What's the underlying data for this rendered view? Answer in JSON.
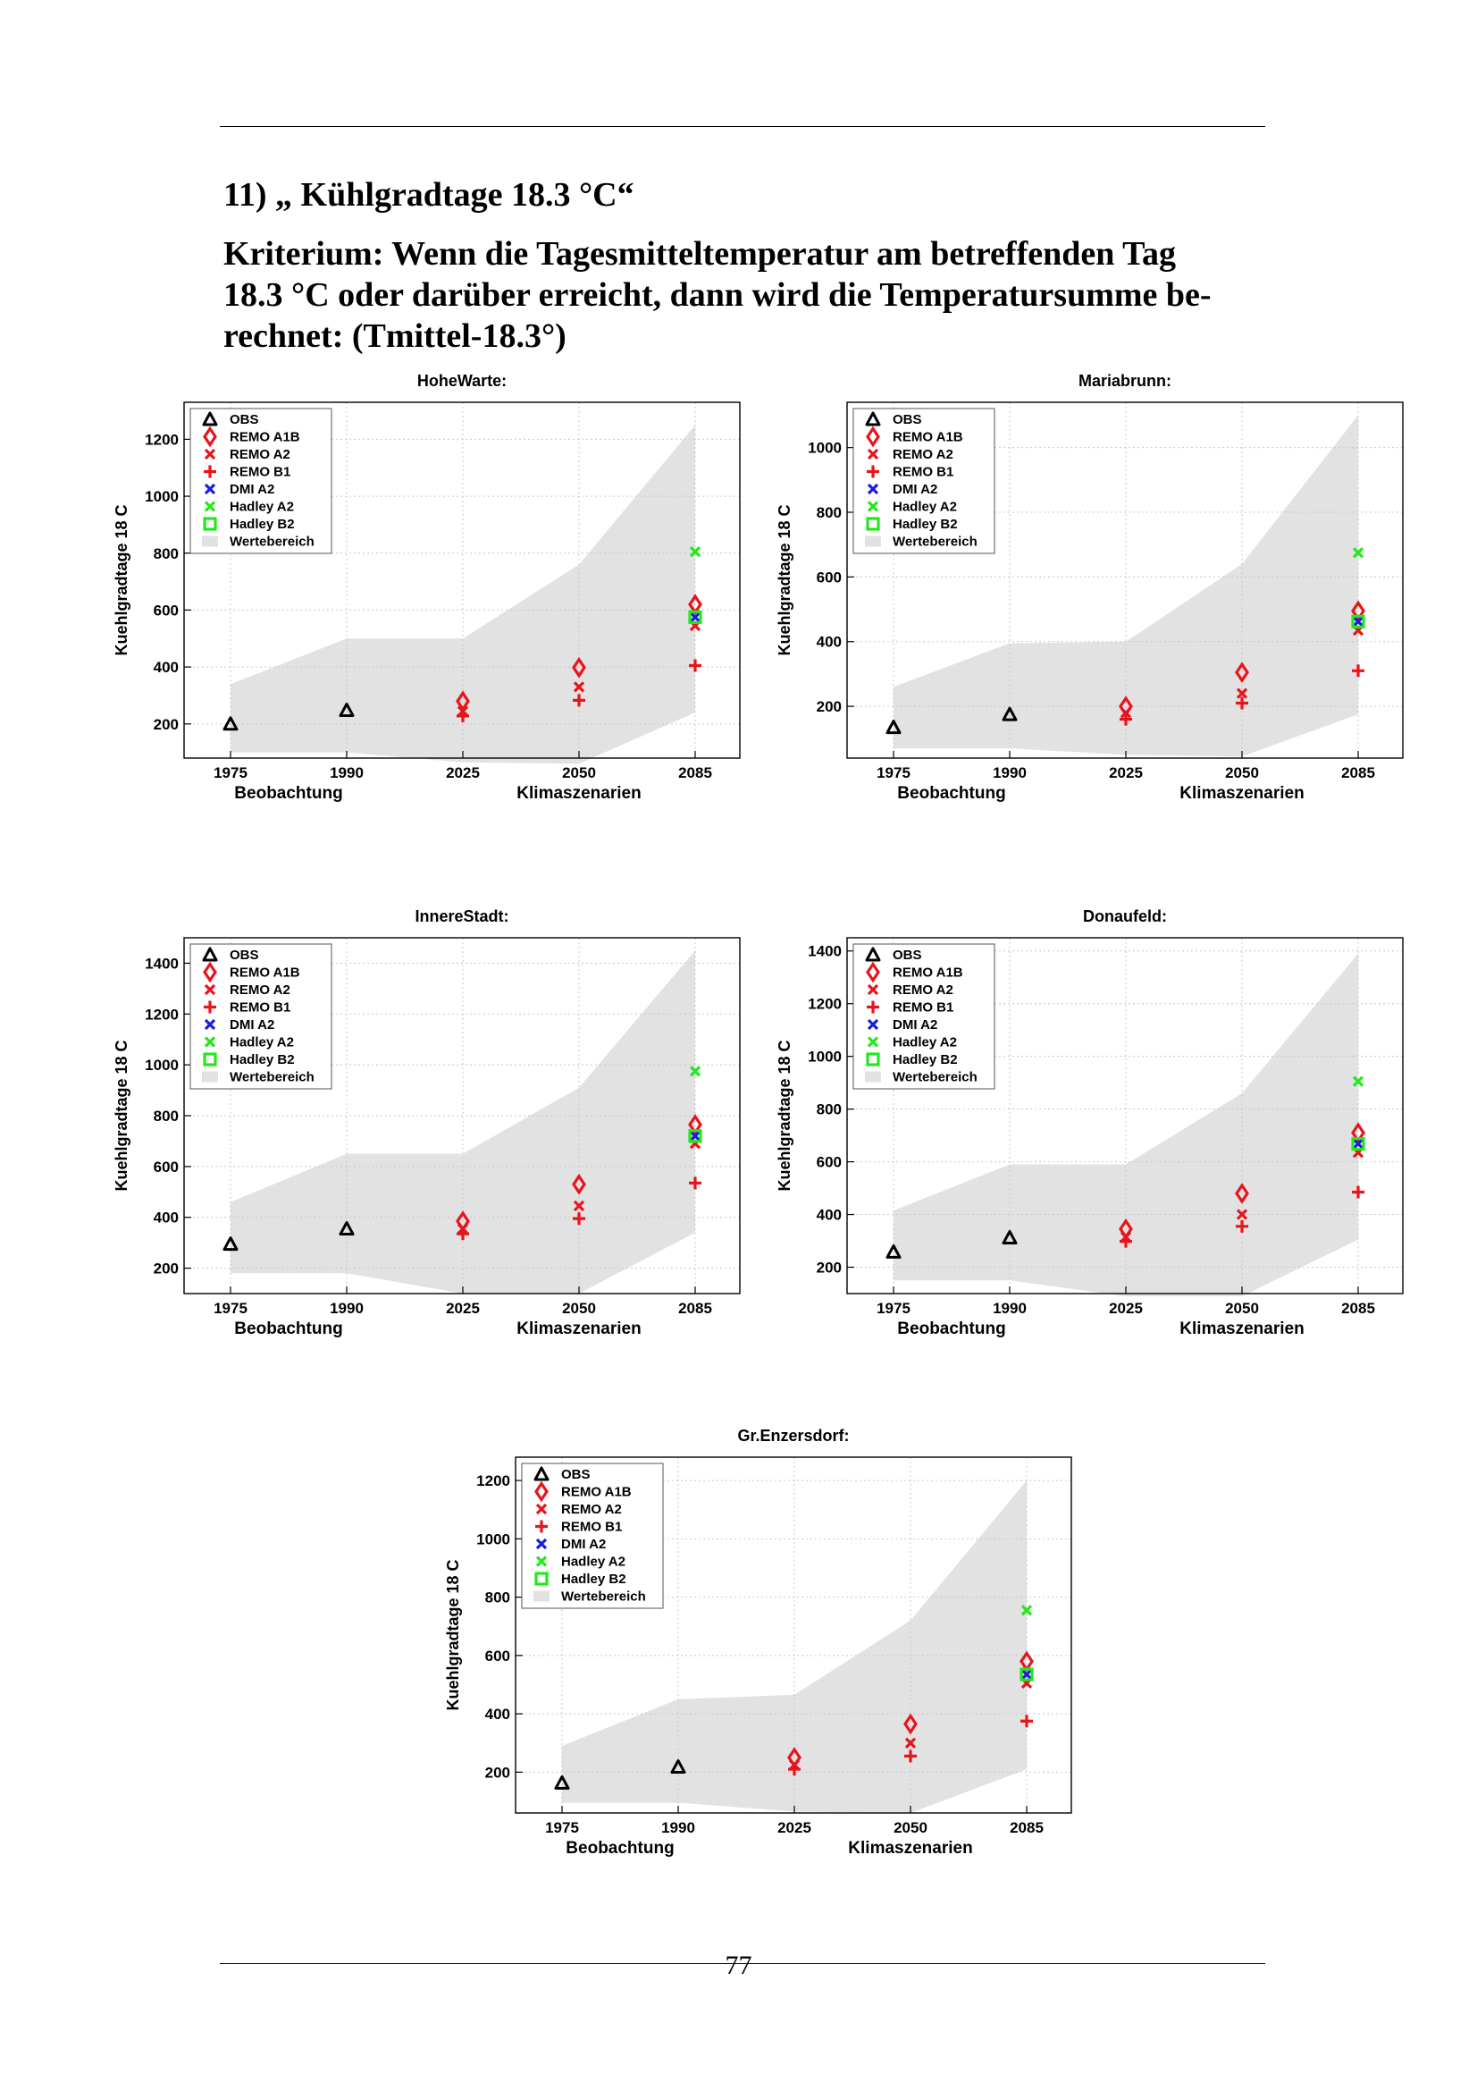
{
  "section_title": "11)  „ Kühlgradtage 18.3 °C“",
  "criterion_lines": [
    "Kriterium: Wenn die Tagesmitteltemperatur am betreffenden Tag",
    "18.3 °C oder darüber erreicht, dann wird die Temperatursumme be-",
    "rechnet: (Tmittel-18.3°)"
  ],
  "page_number": "77",
  "colors": {
    "obs": "#000000",
    "remo": "#e8141c",
    "dmi": "#1c1ce0",
    "hadley": "#22e81c",
    "range": "#e2e2e2",
    "grid": "#c8c8c8"
  },
  "legend": [
    "OBS",
    "REMO A1B",
    "REMO A2",
    "REMO B1",
    "DMI A2",
    "Hadley A2",
    "Hadley B2",
    "Wertebereich"
  ],
  "chart_data": [
    {
      "type": "scatter",
      "title": "HoheWarte:",
      "ylabel": "Kuehlgradtage 18 C",
      "xlabel_obs": "Beobachtung",
      "xlabel_scen": "Klimaszenarien",
      "categories": [
        "1975",
        "1990",
        "2025",
        "2050",
        "2085"
      ],
      "ylim": [
        80,
        1330
      ],
      "yticks": [
        "200",
        "400",
        "600",
        "800",
        "1000",
        "1200"
      ],
      "range_upper": [
        340,
        500,
        500,
        760,
        1250
      ],
      "range_lower": [
        100,
        100,
        65,
        60,
        240
      ],
      "series": [
        {
          "name": "OBS",
          "x": [
            "1975",
            "1990"
          ],
          "values": [
            200,
            248
          ]
        },
        {
          "name": "REMO A1B",
          "x": [
            "2025",
            "2050",
            "2085"
          ],
          "values": [
            280,
            398,
            620
          ]
        },
        {
          "name": "REMO A2",
          "x": [
            "2025",
            "2050",
            "2085"
          ],
          "values": [
            245,
            330,
            545
          ]
        },
        {
          "name": "REMO B1",
          "x": [
            "2025",
            "2050",
            "2085"
          ],
          "values": [
            228,
            283,
            405
          ]
        },
        {
          "name": "DMI A2",
          "x": [
            "2085"
          ],
          "values": [
            575
          ]
        },
        {
          "name": "Hadley A2",
          "x": [
            "2085"
          ],
          "values": [
            805
          ]
        },
        {
          "name": "Hadley B2",
          "x": [
            "2085"
          ],
          "values": [
            575
          ]
        }
      ]
    },
    {
      "type": "scatter",
      "title": "Mariabrunn:",
      "ylabel": "Kuehlgradtage 18 C",
      "xlabel_obs": "Beobachtung",
      "xlabel_scen": "Klimaszenarien",
      "categories": [
        "1975",
        "1990",
        "2025",
        "2050",
        "2085"
      ],
      "ylim": [
        40,
        1140
      ],
      "yticks": [
        "200",
        "400",
        "600",
        "800",
        "1000"
      ],
      "range_upper": [
        260,
        395,
        400,
        640,
        1100
      ],
      "range_lower": [
        70,
        70,
        50,
        45,
        175
      ],
      "series": [
        {
          "name": "OBS",
          "x": [
            "1975",
            "1990"
          ],
          "values": [
            135,
            175
          ]
        },
        {
          "name": "REMO A1B",
          "x": [
            "2025",
            "2050",
            "2085"
          ],
          "values": [
            200,
            305,
            495
          ]
        },
        {
          "name": "REMO A2",
          "x": [
            "2025",
            "2050",
            "2085"
          ],
          "values": [
            180,
            240,
            435
          ]
        },
        {
          "name": "REMO B1",
          "x": [
            "2025",
            "2050",
            "2085"
          ],
          "values": [
            160,
            210,
            310
          ]
        },
        {
          "name": "DMI A2",
          "x": [
            "2085"
          ],
          "values": [
            462
          ]
        },
        {
          "name": "Hadley A2",
          "x": [
            "2085"
          ],
          "values": [
            675
          ]
        },
        {
          "name": "Hadley B2",
          "x": [
            "2085"
          ],
          "values": [
            462
          ]
        }
      ]
    },
    {
      "type": "scatter",
      "title": "InnereStadt:",
      "ylabel": "Kuehlgradtage 18 C",
      "xlabel_obs": "Beobachtung",
      "xlabel_scen": "Klimaszenarien",
      "categories": [
        "1975",
        "1990",
        "2025",
        "2050",
        "2085"
      ],
      "ylim": [
        100,
        1500
      ],
      "yticks": [
        "200",
        "400",
        "600",
        "800",
        "1000",
        "1200",
        "1400"
      ],
      "range_upper": [
        460,
        650,
        650,
        910,
        1450
      ],
      "range_lower": [
        180,
        180,
        100,
        100,
        340
      ],
      "series": [
        {
          "name": "OBS",
          "x": [
            "1975",
            "1990"
          ],
          "values": [
            295,
            355
          ]
        },
        {
          "name": "REMO A1B",
          "x": [
            "2025",
            "2050",
            "2085"
          ],
          "values": [
            385,
            530,
            765
          ]
        },
        {
          "name": "REMO A2",
          "x": [
            "2025",
            "2050",
            "2085"
          ],
          "values": [
            355,
            445,
            690
          ]
        },
        {
          "name": "REMO B1",
          "x": [
            "2025",
            "2050",
            "2085"
          ],
          "values": [
            335,
            395,
            535
          ]
        },
        {
          "name": "DMI A2",
          "x": [
            "2085"
          ],
          "values": [
            720
          ]
        },
        {
          "name": "Hadley A2",
          "x": [
            "2085"
          ],
          "values": [
            975
          ]
        },
        {
          "name": "Hadley B2",
          "x": [
            "2085"
          ],
          "values": [
            720
          ]
        }
      ]
    },
    {
      "type": "scatter",
      "title": "Donaufeld:",
      "ylabel": "Kuehlgradtage 18 C",
      "xlabel_obs": "Beobachtung",
      "xlabel_scen": "Klimaszenarien",
      "categories": [
        "1975",
        "1990",
        "2025",
        "2050",
        "2085"
      ],
      "ylim": [
        100,
        1450
      ],
      "yticks": [
        "200",
        "400",
        "600",
        "800",
        "1000",
        "1200",
        "1400"
      ],
      "range_upper": [
        415,
        590,
        590,
        860,
        1390
      ],
      "range_lower": [
        150,
        150,
        90,
        90,
        305
      ],
      "series": [
        {
          "name": "OBS",
          "x": [
            "1975",
            "1990"
          ],
          "values": [
            258,
            312
          ]
        },
        {
          "name": "REMO A1B",
          "x": [
            "2025",
            "2050",
            "2085"
          ],
          "values": [
            345,
            480,
            710
          ]
        },
        {
          "name": "REMO A2",
          "x": [
            "2025",
            "2050",
            "2085"
          ],
          "values": [
            315,
            400,
            635
          ]
        },
        {
          "name": "REMO B1",
          "x": [
            "2025",
            "2050",
            "2085"
          ],
          "values": [
            298,
            355,
            485
          ]
        },
        {
          "name": "DMI A2",
          "x": [
            "2085"
          ],
          "values": [
            668
          ]
        },
        {
          "name": "Hadley A2",
          "x": [
            "2085"
          ],
          "values": [
            905
          ]
        },
        {
          "name": "Hadley B2",
          "x": [
            "2085"
          ],
          "values": [
            668
          ]
        }
      ]
    },
    {
      "type": "scatter",
      "title": "Gr.Enzersdorf:",
      "ylabel": "Kuehlgradtage 18 C",
      "xlabel_obs": "Beobachtung",
      "xlabel_scen": "Klimaszenarien",
      "categories": [
        "1975",
        "1990",
        "2025",
        "2050",
        "2085"
      ],
      "ylim": [
        60,
        1280
      ],
      "yticks": [
        "200",
        "400",
        "600",
        "800",
        "1000",
        "1200"
      ],
      "range_upper": [
        290,
        450,
        465,
        720,
        1200
      ],
      "range_lower": [
        95,
        95,
        65,
        60,
        210
      ],
      "series": [
        {
          "name": "OBS",
          "x": [
            "1975",
            "1990"
          ],
          "values": [
            163,
            218
          ]
        },
        {
          "name": "REMO A1B",
          "x": [
            "2025",
            "2050",
            "2085"
          ],
          "values": [
            250,
            365,
            580
          ]
        },
        {
          "name": "REMO A2",
          "x": [
            "2025",
            "2050",
            "2085"
          ],
          "values": [
            225,
            300,
            505
          ]
        },
        {
          "name": "REMO B1",
          "x": [
            "2025",
            "2050",
            "2085"
          ],
          "values": [
            210,
            255,
            375
          ]
        },
        {
          "name": "DMI A2",
          "x": [
            "2085"
          ],
          "values": [
            535
          ]
        },
        {
          "name": "Hadley A2",
          "x": [
            "2085"
          ],
          "values": [
            755
          ]
        },
        {
          "name": "Hadley B2",
          "x": [
            "2085"
          ],
          "values": [
            535
          ]
        }
      ]
    }
  ]
}
